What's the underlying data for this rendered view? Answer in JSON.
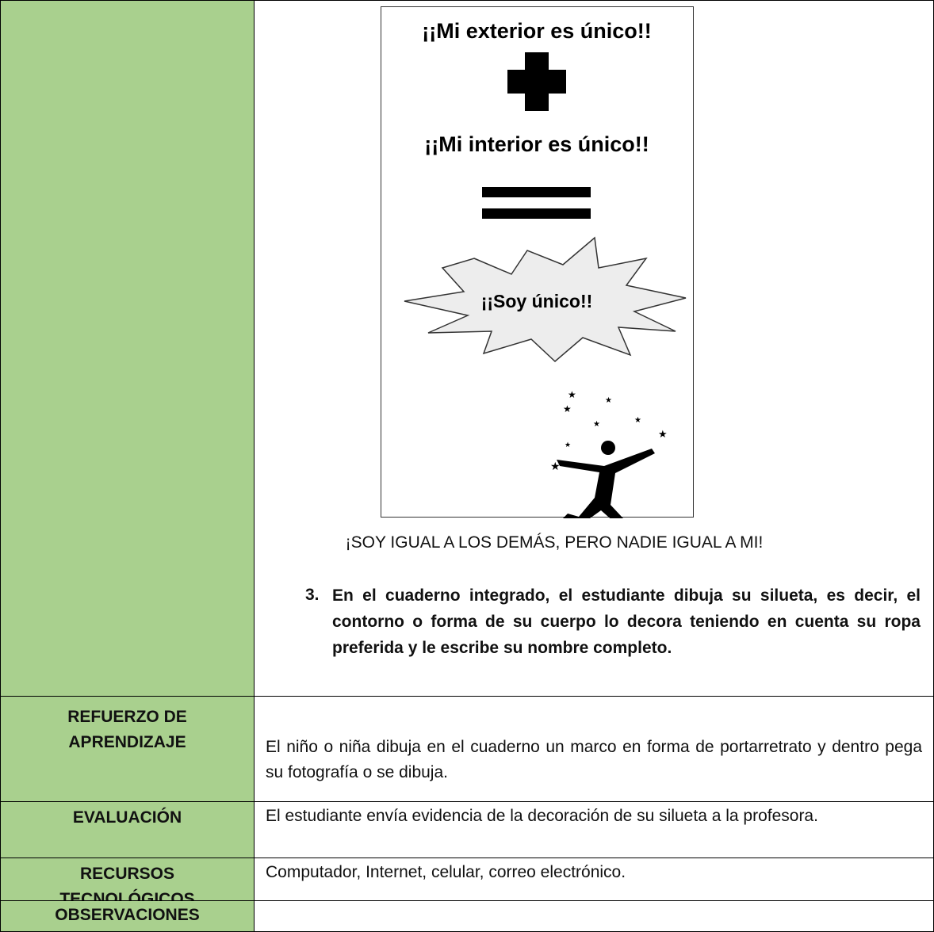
{
  "image": {
    "line_1": "¡¡Mi exterior es único!!",
    "line_2": "¡¡Mi interior es único!!",
    "burst": "¡¡Soy único!!"
  },
  "caption": "¡SOY IGUAL A LOS DEMÁS, PERO NADIE IGUAL A MI!",
  "step": {
    "number": "3.",
    "text": "En el cuaderno integrado, el estudiante dibuja su silueta, es decir, el contorno o forma de su cuerpo lo decora teniendo en cuenta su ropa preferida y le escribe su nombre completo."
  },
  "rows": [
    {
      "label": "REFUERZO DE APRENDIZAJE",
      "text": "El niño o niña dibuja en el cuaderno un marco en forma de portarretrato y dentro pega su fotografía o se dibuja."
    },
    {
      "label": "EVALUACIÓN",
      "text": "El estudiante envía evidencia de la decoración de su silueta a la profesora."
    },
    {
      "label": "RECURSOS TECNOLÓGICOS",
      "text": "Computador, Internet, celular, correo electrónico."
    },
    {
      "label": "OBSERVACIONES"
    }
  ]
}
